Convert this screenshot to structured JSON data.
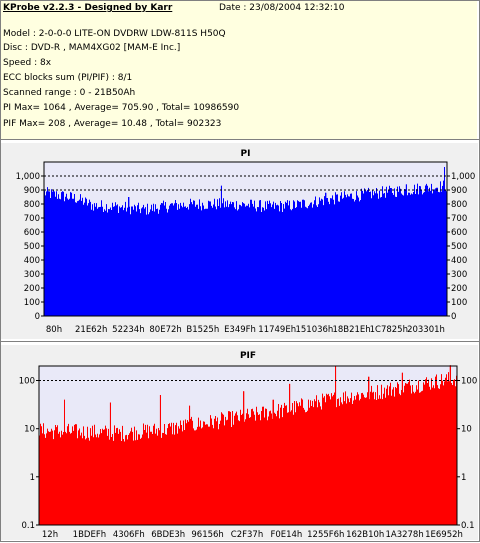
{
  "header": {
    "app_title": "KProbe v2.2.3 - Designed by Karr",
    "date": "Date : 23/08/2004 12:32:10",
    "model": "Model : 2-0-0-0 LITE-ON DVDRW LDW-811S   H50Q",
    "disc": "Disc : DVD-R , MAM4XG02 [MAM-E Inc.]",
    "speed": "Speed : 8x",
    "ecc": "ECC blocks sum (PI/PIF) : 8/1",
    "scanned_range": "Scanned range : 0 - 21B50Ah",
    "pi_stats": "PI Max= 1064 , Average= 705.90 , Total= 10986590",
    "pif_stats": "PIF Max= 208 , Average= 10.48 , Total= 902323"
  },
  "colors": {
    "info_background": "#ffffe0",
    "panel_background": "#f0f0f0",
    "plot_background": "#e9e9f8",
    "pi_bar": "#0000ff",
    "pif_bar": "#ff0000",
    "guide_line": "#000000"
  },
  "chart_data": [
    {
      "type": "bar",
      "title": "PI",
      "yscale": "linear",
      "ylim": [
        0,
        1100
      ],
      "yticks": [
        "0",
        "100",
        "200",
        "300",
        "400",
        "500",
        "600",
        "700",
        "800",
        "900",
        "1,000"
      ],
      "xticks": [
        "80h",
        "21E62h",
        "52234h",
        "80E72h",
        "B1525h",
        "E349Fh",
        "11749Eh",
        "151036h",
        "18B21Eh",
        "1C7825h",
        "203301h"
      ],
      "reference_lines": [
        1000,
        900
      ],
      "series": [
        {
          "profile": [
            [
              0,
              880
            ],
            [
              0.08,
              840
            ],
            [
              0.12,
              790
            ],
            [
              0.18,
              780
            ],
            [
              0.25,
              760
            ],
            [
              0.32,
              790
            ],
            [
              0.4,
              800
            ],
            [
              0.5,
              795
            ],
            [
              0.56,
              780
            ],
            [
              0.62,
              790
            ],
            [
              0.7,
              830
            ],
            [
              0.8,
              870
            ],
            [
              0.9,
              900
            ],
            [
              1.0,
              930
            ]
          ],
          "spikes": [
            [
              0.21,
              850
            ],
            [
              0.44,
              930
            ],
            [
              0.7,
              880
            ],
            [
              0.9,
              940
            ],
            [
              0.995,
              1064
            ]
          ]
        }
      ]
    },
    {
      "type": "bar",
      "title": "PIF",
      "yscale": "log",
      "ylim": [
        0.1,
        200
      ],
      "yticks": [
        "0.1",
        "1",
        "10",
        "100"
      ],
      "xticks": [
        "12h",
        "1BDEFh",
        "4306Fh",
        "6BDE3h",
        "96156h",
        "C2F37h",
        "F0E14h",
        "1255F6h",
        "162B10h",
        "1A3278h",
        "1E6952h"
      ],
      "reference_lines": [
        100
      ],
      "series": [
        {
          "profile": [
            [
              0,
              9
            ],
            [
              0.1,
              8.5
            ],
            [
              0.2,
              8
            ],
            [
              0.3,
              9.5
            ],
            [
              0.4,
              13
            ],
            [
              0.5,
              18
            ],
            [
              0.6,
              25
            ],
            [
              0.7,
              40
            ],
            [
              0.8,
              55
            ],
            [
              0.9,
              80
            ],
            [
              1.0,
              110
            ]
          ],
          "spikes": [
            [
              0.06,
              40
            ],
            [
              0.17,
              35
            ],
            [
              0.29,
              50
            ],
            [
              0.36,
              30
            ],
            [
              0.49,
              60
            ],
            [
              0.56,
              40
            ],
            [
              0.6,
              85
            ],
            [
              0.71,
              195
            ],
            [
              0.79,
              120
            ],
            [
              0.87,
              145
            ],
            [
              0.985,
              208
            ]
          ]
        }
      ]
    }
  ]
}
